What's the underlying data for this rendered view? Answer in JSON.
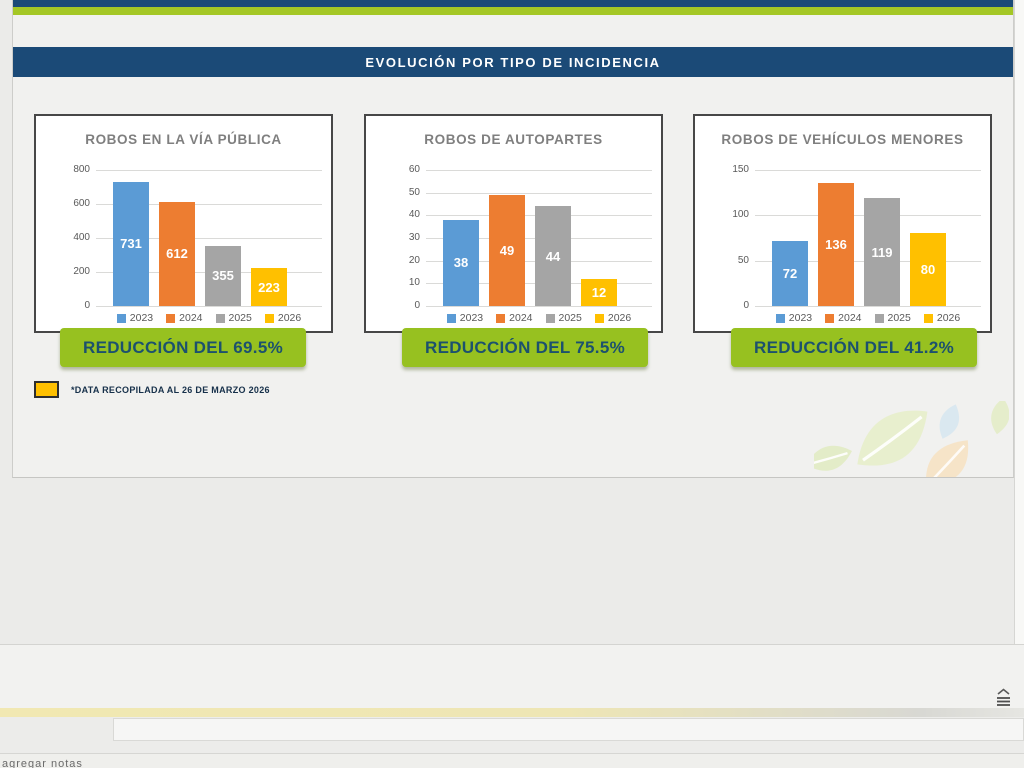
{
  "banner": {
    "title": "EVOLUCIÓN POR TIPO DE INCIDENCIA",
    "bg_color": "#1b4a77",
    "text_color": "#ffffff"
  },
  "theme": {
    "top_bar_color": "#1b4a77",
    "stripe_color": "#a4c725",
    "badge_color": "#97c120",
    "badge_text_color": "#1c516e",
    "series_colors": [
      "#5B9BD5",
      "#ED7D31",
      "#A5A5A5",
      "#FFC000"
    ]
  },
  "chart_data": [
    {
      "type": "bar",
      "title": "ROBOS EN LA VÍA PÚBLICA",
      "categories": [
        "2023",
        "2024",
        "2025",
        "2026"
      ],
      "values": [
        731,
        612,
        355,
        223
      ],
      "ylim": [
        0,
        800
      ],
      "yticks": [
        0,
        200,
        400,
        600,
        800
      ],
      "xlabel": "",
      "ylabel": "",
      "grid": true,
      "legend_position": "bottom",
      "reduction_label": "REDUCCIÓN DEL 69.5%"
    },
    {
      "type": "bar",
      "title": "ROBOS DE AUTOPARTES",
      "categories": [
        "2023",
        "2024",
        "2025",
        "2026"
      ],
      "values": [
        38,
        49,
        44,
        12
      ],
      "ylim": [
        0,
        60
      ],
      "yticks": [
        0,
        10,
        20,
        30,
        40,
        50,
        60
      ],
      "xlabel": "",
      "ylabel": "",
      "grid": true,
      "legend_position": "bottom",
      "reduction_label": "REDUCCIÓN DEL 75.5%"
    },
    {
      "type": "bar",
      "title": "ROBOS DE VEHÍCULOS MENORES",
      "categories": [
        "2023",
        "2024",
        "2025",
        "2026"
      ],
      "values": [
        72,
        136,
        119,
        80
      ],
      "ylim": [
        0,
        150
      ],
      "yticks": [
        0,
        50,
        100,
        150
      ],
      "xlabel": "",
      "ylabel": "",
      "grid": true,
      "legend_position": "bottom",
      "reduction_label": "REDUCCIÓN DEL 41.2%"
    }
  ],
  "footnote": {
    "text": "*DATA RECOPILADA AL 26 DE MARZO 2026",
    "swatch_color": "#FFC000"
  },
  "bottom_ui": {
    "notes_hint_fragment": "agregar notas",
    "collapse_icon": "chevron-up-lines-icon"
  }
}
